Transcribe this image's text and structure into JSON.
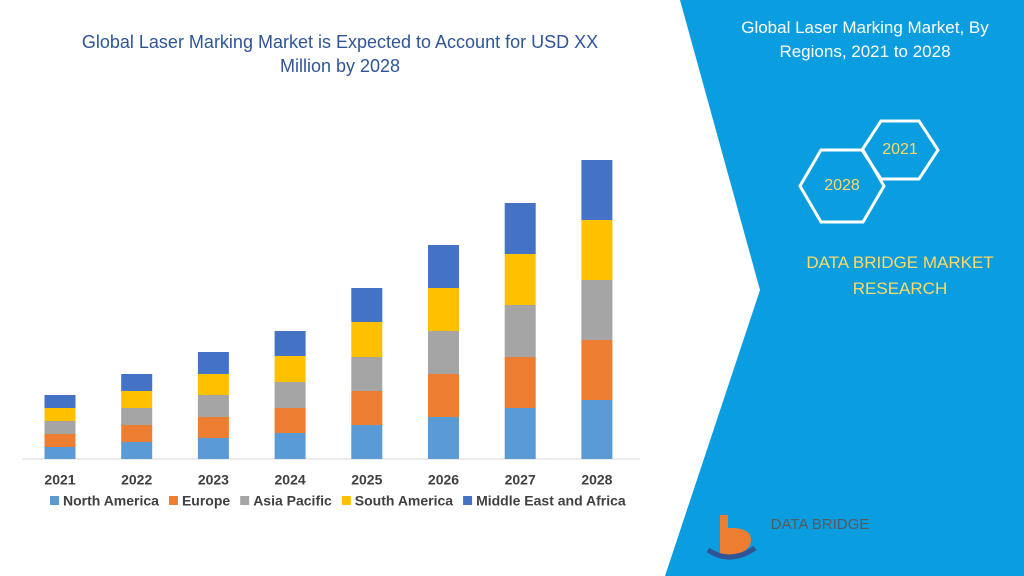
{
  "chart_data": {
    "type": "bar",
    "stacked": true,
    "title": "Global Laser Marking Market is Expected to Account for USD XX Million by 2028",
    "categories": [
      "2021",
      "2022",
      "2023",
      "2024",
      "2025",
      "2026",
      "2027",
      "2028"
    ],
    "series": [
      {
        "name": "North America",
        "color": "#5b9bd5",
        "values": [
          12,
          17,
          21,
          26,
          34,
          42,
          51,
          59
        ]
      },
      {
        "name": "Europe",
        "color": "#ed7d31",
        "values": [
          13,
          17,
          21,
          25,
          34,
          43,
          51,
          60
        ]
      },
      {
        "name": "Asia Pacific",
        "color": "#a5a5a5",
        "values": [
          13,
          17,
          22,
          26,
          34,
          43,
          52,
          60
        ]
      },
      {
        "name": "South America",
        "color": "#ffc000",
        "values": [
          13,
          17,
          21,
          26,
          35,
          43,
          51,
          60
        ]
      },
      {
        "name": "Middle East and Africa",
        "color": "#4472c4",
        "values": [
          13,
          17,
          22,
          25,
          34,
          43,
          51,
          60
        ]
      }
    ]
  },
  "panel": {
    "title": "Global Laser Marking Market, By Regions, 2021 to 2028",
    "hexagons": [
      "2021",
      "2028"
    ],
    "brand": "DATA BRIDGE MARKET RESEARCH",
    "logo": "DATA BRIDGE"
  }
}
